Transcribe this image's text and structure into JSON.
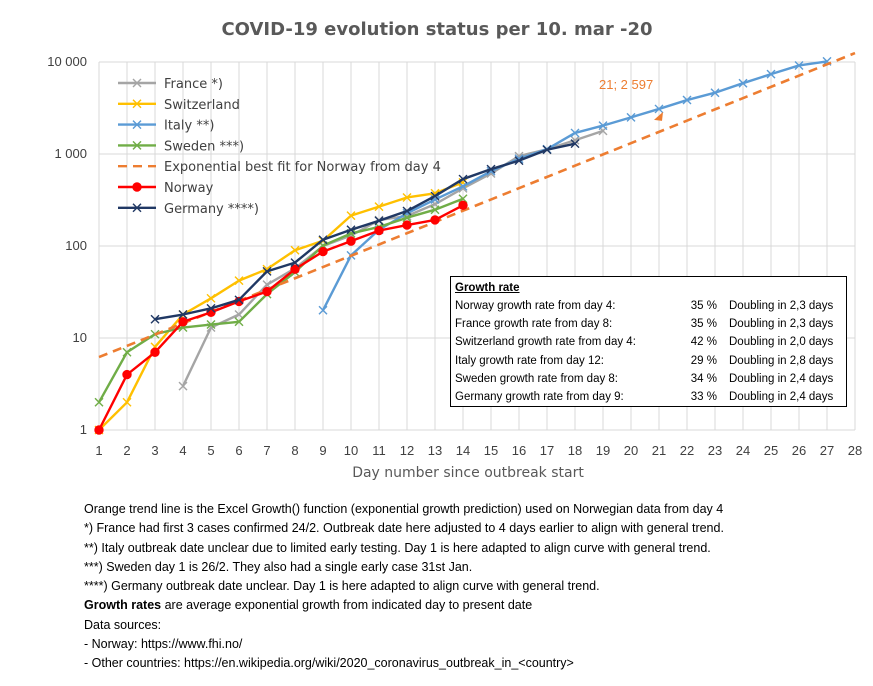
{
  "chart_data": {
    "type": "line",
    "title": "COVID-19 evolution status per 10. mar -20",
    "xlabel": "Day number since outbreak start",
    "ylabel": "",
    "xlim": [
      1,
      28
    ],
    "ylim": [
      1,
      10000
    ],
    "yscale": "log",
    "x_ticks": [
      "1",
      "2",
      "3",
      "4",
      "5",
      "6",
      "7",
      "8",
      "9",
      "10",
      "11",
      "12",
      "13",
      "14",
      "15",
      "16",
      "17",
      "18",
      "19",
      "20",
      "21",
      "22",
      "23",
      "24",
      "25",
      "26",
      "27",
      "28"
    ],
    "y_ticks": [
      {
        "value": 1,
        "label": "1"
      },
      {
        "value": 10,
        "label": "10"
      },
      {
        "value": 100,
        "label": "100"
      },
      {
        "value": 1000,
        "label": "1 000"
      },
      {
        "value": 10000,
        "label": "10 000"
      }
    ],
    "grid": true,
    "legend_position": "top-left",
    "series": [
      {
        "name": "France  *)",
        "color": "#a5a5a5",
        "marker": "x",
        "points": [
          [
            4,
            3
          ],
          [
            5,
            13
          ],
          [
            6,
            18
          ],
          [
            7,
            38
          ],
          [
            8,
            57
          ],
          [
            9,
            100
          ],
          [
            10,
            130
          ],
          [
            11,
            191
          ],
          [
            12,
            212
          ],
          [
            13,
            285
          ],
          [
            14,
            423
          ],
          [
            15,
            613
          ],
          [
            16,
            949
          ],
          [
            17,
            1126
          ],
          [
            18,
            1412
          ],
          [
            19,
            1784
          ]
        ]
      },
      {
        "name": "Switzerland",
        "color": "#ffc000",
        "marker": "x",
        "points": [
          [
            1,
            1
          ],
          [
            2,
            2
          ],
          [
            3,
            8
          ],
          [
            4,
            18
          ],
          [
            5,
            27
          ],
          [
            6,
            42
          ],
          [
            7,
            56
          ],
          [
            8,
            90
          ],
          [
            9,
            114
          ],
          [
            10,
            214
          ],
          [
            11,
            268
          ],
          [
            12,
            337
          ],
          [
            13,
            374
          ],
          [
            14,
            491
          ]
        ]
      },
      {
        "name": "Italy  **)",
        "color": "#5b9bd5",
        "marker": "x",
        "points": [
          [
            9,
            20
          ],
          [
            10,
            79
          ],
          [
            11,
            150
          ],
          [
            12,
            227
          ],
          [
            13,
            320
          ],
          [
            14,
            445
          ],
          [
            15,
            650
          ],
          [
            16,
            888
          ],
          [
            17,
            1128
          ],
          [
            18,
            1694
          ],
          [
            19,
            2036
          ],
          [
            20,
            2502
          ],
          [
            21,
            3089
          ],
          [
            22,
            3858
          ],
          [
            23,
            4636
          ],
          [
            24,
            5883
          ],
          [
            25,
            7375
          ],
          [
            26,
            9172
          ],
          [
            27,
            10149
          ]
        ]
      },
      {
        "name": "Sweden  ***)",
        "color": "#70ad47",
        "marker": "x",
        "points": [
          [
            1,
            2
          ],
          [
            2,
            7
          ],
          [
            3,
            11
          ],
          [
            4,
            13
          ],
          [
            5,
            14
          ],
          [
            6,
            15
          ],
          [
            7,
            30
          ],
          [
            8,
            52
          ],
          [
            9,
            101
          ],
          [
            10,
            137
          ],
          [
            11,
            161
          ],
          [
            12,
            203
          ],
          [
            13,
            248
          ],
          [
            14,
            326
          ]
        ]
      },
      {
        "name": "Exponential best fit for Norway from day 4",
        "color": "#ed7d31",
        "marker": "none",
        "dashed": true,
        "points": [
          [
            1,
            6.2
          ],
          [
            28,
            12500
          ]
        ]
      },
      {
        "name": "Norway",
        "color": "#ff0000",
        "marker": "circle",
        "points": [
          [
            1,
            1
          ],
          [
            2,
            4
          ],
          [
            3,
            7
          ],
          [
            4,
            15
          ],
          [
            5,
            19
          ],
          [
            6,
            25
          ],
          [
            7,
            32
          ],
          [
            8,
            56
          ],
          [
            9,
            87
          ],
          [
            10,
            113
          ],
          [
            11,
            147
          ],
          [
            12,
            169
          ],
          [
            13,
            192
          ],
          [
            14,
            277
          ]
        ]
      },
      {
        "name": "Germany  ****)",
        "color": "#203864",
        "marker": "x",
        "points": [
          [
            3,
            16
          ],
          [
            4,
            18
          ],
          [
            5,
            21
          ],
          [
            6,
            26
          ],
          [
            7,
            53
          ],
          [
            8,
            66
          ],
          [
            9,
            117
          ],
          [
            10,
            150
          ],
          [
            11,
            188
          ],
          [
            12,
            240
          ],
          [
            13,
            349
          ],
          [
            14,
            534
          ],
          [
            15,
            684
          ],
          [
            16,
            847
          ],
          [
            17,
            1112
          ],
          [
            18,
            1296
          ]
        ]
      }
    ],
    "annotation": {
      "text": "21; 2 597",
      "x": 21,
      "y": 2597,
      "color": "#ed7d31"
    }
  },
  "growth_table": {
    "title": "Growth rate",
    "rows": [
      {
        "label": "Norway growth rate from day 4:",
        "rate": "35 %",
        "doubling": "Doubling in 2,3 days"
      },
      {
        "label": "France growth rate from day 8:",
        "rate": "35 %",
        "doubling": "Doubling in 2,3 days"
      },
      {
        "label": "Switzerland growth rate from day 4:",
        "rate": "42 %",
        "doubling": "Doubling in 2,0 days"
      },
      {
        "label": "Italy growth rate from day 12:",
        "rate": "29 %",
        "doubling": "Doubling in 2,8 days"
      },
      {
        "label": "Sweden growth rate from day 8:",
        "rate": "34 %",
        "doubling": "Doubling in 2,4 days"
      },
      {
        "label": "Germany growth rate from day 9:",
        "rate": "33 %",
        "doubling": "Doubling in 2,4 days"
      }
    ]
  },
  "notes": {
    "trend": "Orange trend line is the Excel Growth() function (exponential growth prediction) used on Norwegian data from day 4",
    "france": "*) France had first 3 cases confirmed 24/2. Outbreak date here adjusted to 4 days earlier to align with general trend.",
    "italy": "**) Italy outbreak date unclear due to limited early testing. Day 1 is  here adapted to align curve with general trend.",
    "sweden": "***) Sweden day 1 is 26/2. They also had a single early case 31st Jan.",
    "germany": "****) Germany outbreak date unclear. Day 1 is here adapted to align curve with general trend.",
    "growth_bold": "Growth rates",
    "growth_rest": " are average exponential growth from indicated day to present date",
    "sources_title": "Data sources:",
    "source_norway": "- Norway: https://www.fhi.no/",
    "source_other": "- Other countries: https://en.wikipedia.org/wiki/2020_coronavirus_outbreak_in_<country>"
  }
}
